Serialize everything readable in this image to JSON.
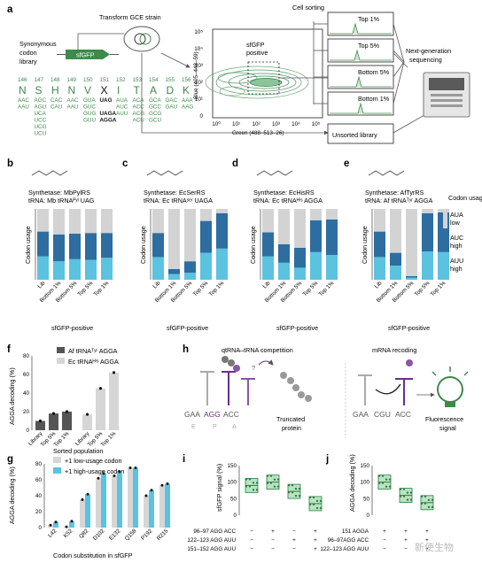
{
  "panels": {
    "a": {
      "letter": "a",
      "synonymous_label": [
        "Synonymous",
        "codon",
        "library"
      ],
      "gene": "sfGFP",
      "transform": "Transform GCE strain",
      "cell_sorting": "Cell sorting",
      "sfgfp_positive": [
        "sfGFP",
        "positive"
      ],
      "y_axis": "Blue (405–448–59)",
      "x_axis": "Green (488–513–26)",
      "y_ticks": [
        "10⁵",
        "10⁴",
        "10³",
        "10²",
        "10¹",
        "0"
      ],
      "x_ticks": [
        "10⁰",
        "10¹",
        "10²",
        "10³",
        "10⁴",
        "10⁵"
      ],
      "sort_bins": [
        "Top 1%",
        "Top 5%",
        "Bottom 5%",
        "Bottom 1%"
      ],
      "unsorted": "Unsorted library",
      "ngs": [
        "Next-generation",
        "sequencing"
      ],
      "positions": [
        "146",
        "147",
        "148",
        "149",
        "150",
        "151",
        "152",
        "153",
        "154",
        "155",
        "156"
      ],
      "aa": [
        "N",
        "S",
        "H",
        "N",
        "V",
        "X",
        "I",
        "T",
        "A",
        "D",
        "K"
      ],
      "codons": [
        [
          "AAC",
          "AAU"
        ],
        [
          "AGC",
          "AGU",
          "UCA",
          "UCC",
          "UCG",
          "UCU"
        ],
        [
          "CAC",
          "CAU"
        ],
        [
          "AAC",
          "AAU"
        ],
        [
          "GUA",
          "GUC",
          "GUG",
          "GUU"
        ],
        [
          "UAG",
          "",
          "UAGA",
          "AGGA"
        ],
        [
          "AUA",
          "AUC",
          "AUU"
        ],
        [
          "ACA",
          "ACC",
          "ACG",
          "ACU"
        ],
        [
          "GCA",
          "GCC",
          "GCG",
          "GCU"
        ],
        [
          "GAC",
          "GAU"
        ],
        [
          "AAA",
          "AAG"
        ]
      ]
    },
    "b": {
      "letter": "b",
      "synthetase": "Synthetase: MbPylRS",
      "trna": "tRNA: Mb tRNAᴾʸˡ UAG"
    },
    "c": {
      "letter": "c",
      "synthetase": "Synthetase: EcSerRS",
      "trna": "tRNA: Ec tRNAˢᵉʳ UAGA"
    },
    "d": {
      "letter": "d",
      "synthetase": "Synthetase: EcHisRS",
      "trna": "tRNA: Ec tRNAᴴⁱˢ AGGA"
    },
    "e": {
      "letter": "e",
      "synthetase": "Synthetase: AfTyrRS",
      "trna": "tRNA: Af tRNAᵀʸʳ AGGA"
    },
    "usage_axis": "Codon usage",
    "usage_xlabel": "sfGFP-positive",
    "usage_cats": [
      "Lib",
      "Bottom 1%",
      "Bottom 5%",
      "Top 5%",
      "Top 1%"
    ],
    "legend_usage": {
      "title": "Codon usage:",
      "items": [
        "AUA low",
        "AUC high",
        "AUU high"
      ],
      "colors": [
        "#d3d3d3",
        "#2e6da0",
        "#5bc2e0"
      ]
    },
    "f": {
      "letter": "f",
      "ylabel": "AGGA decoding (%)",
      "xlabel": "Sorted population",
      "legend": [
        "Af tRNAᵀʸʳ AGGA",
        "Ec tRNAᴴⁱˢ AGGA"
      ],
      "yticks": [
        "0",
        "20",
        "40",
        "60",
        "80"
      ],
      "cats": [
        "Library",
        "Top 5%",
        "Top 1%",
        "Library",
        "Top 5%",
        "Top 1%"
      ]
    },
    "g": {
      "letter": "g",
      "ylabel": "AGGA decoding (%)",
      "xlabel": "Codon substitution in sfGFP",
      "legend": [
        "+1 low-usage codon",
        "+1 high-usage codon"
      ],
      "yticks": [
        "0",
        "20",
        "40",
        "60",
        "80"
      ],
      "cats": [
        "L42",
        "K52",
        "Q82",
        "D102",
        "E132",
        "Q158",
        "P192",
        "R215"
      ]
    },
    "h": {
      "letter": "h",
      "title_left": "qtRNA–tRNA competition",
      "title_right": "mRNA recoding",
      "codon_row_left": [
        "GAA",
        "AGG",
        "ACC"
      ],
      "epa": [
        "E",
        "P",
        "A"
      ],
      "truncated": [
        "Truncated",
        "protein"
      ],
      "codon_row_right": [
        "GAA",
        "CGU",
        "ACC"
      ],
      "fluorescence": [
        "Fluorescence",
        "signal"
      ],
      "question": "?"
    },
    "i": {
      "letter": "i",
      "ylabel": "sfGFP signal (%)",
      "yticks": [
        "0",
        "50",
        "100",
        "150"
      ],
      "rows": [
        "96–97 AGG ACC",
        "122–123 AGG AUU",
        "151–152 AGG AUU"
      ],
      "signs": [
        [
          "−",
          "+",
          "−",
          "+"
        ],
        [
          "−",
          "−",
          "+",
          "+"
        ],
        [
          "−",
          "−",
          "−",
          "+"
        ]
      ]
    },
    "j": {
      "letter": "j",
      "ylabel": "AGGA decoding (%)",
      "yticks": [
        "0",
        "50",
        "100",
        "150"
      ],
      "rows": [
        "151 AGGA",
        "96–97AGG ACC",
        "122–123 AGG AUU"
      ],
      "signs": [
        [
          "+",
          "+",
          "+"
        ],
        [
          "−",
          "+",
          "+"
        ],
        [
          "−",
          "−",
          "+"
        ]
      ]
    },
    "watermark": "新使生物"
  },
  "chart_data": [
    {
      "type": "bar",
      "panel": "b",
      "categories": [
        "Lib",
        "Bottom 1%",
        "Bottom 5%",
        "Top 5%",
        "Top 1%"
      ],
      "series": [
        {
          "name": "AUA low",
          "values": [
            0.32,
            0.36,
            0.35,
            0.34,
            0.34
          ]
        },
        {
          "name": "AUC high",
          "values": [
            0.35,
            0.38,
            0.36,
            0.38,
            0.35
          ]
        },
        {
          "name": "AUU high",
          "values": [
            0.33,
            0.26,
            0.29,
            0.28,
            0.31
          ]
        }
      ]
    },
    {
      "type": "bar",
      "panel": "c",
      "categories": [
        "Lib",
        "Bottom 1%",
        "Bottom 5%",
        "Top 5%",
        "Top 1%"
      ],
      "series": [
        {
          "name": "AUA low",
          "values": [
            0.34,
            0.85,
            0.74,
            0.17,
            0.06
          ]
        },
        {
          "name": "AUC high",
          "values": [
            0.34,
            0.07,
            0.16,
            0.45,
            0.5
          ]
        },
        {
          "name": "AUU high",
          "values": [
            0.32,
            0.08,
            0.1,
            0.38,
            0.44
          ]
        }
      ]
    },
    {
      "type": "bar",
      "panel": "d",
      "categories": [
        "Lib",
        "Bottom 1%",
        "Bottom 5%",
        "Top 5%",
        "Top 1%"
      ],
      "series": [
        {
          "name": "AUA low",
          "values": [
            0.33,
            0.5,
            0.55,
            0.16,
            0.15
          ]
        },
        {
          "name": "AUC high",
          "values": [
            0.34,
            0.26,
            0.28,
            0.45,
            0.5
          ]
        },
        {
          "name": "AUU high",
          "values": [
            0.33,
            0.24,
            0.17,
            0.39,
            0.35
          ]
        }
      ]
    },
    {
      "type": "bar",
      "panel": "e",
      "categories": [
        "Lib",
        "Bottom 1%",
        "Bottom 5%",
        "Top 5%",
        "Top 1%"
      ],
      "series": [
        {
          "name": "AUA low",
          "values": [
            0.32,
            0.62,
            0.95,
            0.06,
            0.05
          ]
        },
        {
          "name": "AUC high",
          "values": [
            0.36,
            0.18,
            0.02,
            0.54,
            0.56
          ]
        },
        {
          "name": "AUU high",
          "values": [
            0.32,
            0.2,
            0.03,
            0.4,
            0.39
          ]
        }
      ]
    },
    {
      "type": "bar",
      "panel": "f",
      "categories": [
        "Library",
        "Top 5%",
        "Top 1%",
        "Library",
        "Top 5%",
        "Top 1%"
      ],
      "values": [
        10,
        18,
        20,
        17,
        45,
        62
      ],
      "ylim": [
        0,
        80
      ]
    },
    {
      "type": "bar",
      "panel": "g",
      "categories": [
        "L42",
        "K52",
        "Q82",
        "D102",
        "E132",
        "Q158",
        "P192",
        "R215"
      ],
      "series": [
        {
          "name": "+1 low-usage codon",
          "values": [
            3,
            1,
            35,
            62,
            65,
            75,
            40,
            53
          ]
        },
        {
          "name": "+1 high-usage codon",
          "values": [
            7,
            8,
            42,
            68,
            70,
            75,
            47,
            55
          ]
        }
      ],
      "ylim": [
        0,
        80
      ]
    },
    {
      "type": "scatter",
      "panel": "i",
      "categories": [
        "1",
        "2",
        "3",
        "4"
      ],
      "values": [
        90,
        100,
        72,
        35
      ],
      "ylim": [
        0,
        150
      ]
    },
    {
      "type": "scatter",
      "panel": "j",
      "categories": [
        "1",
        "2",
        "3"
      ],
      "values": [
        100,
        60,
        38
      ],
      "ylim": [
        0,
        150
      ]
    }
  ]
}
